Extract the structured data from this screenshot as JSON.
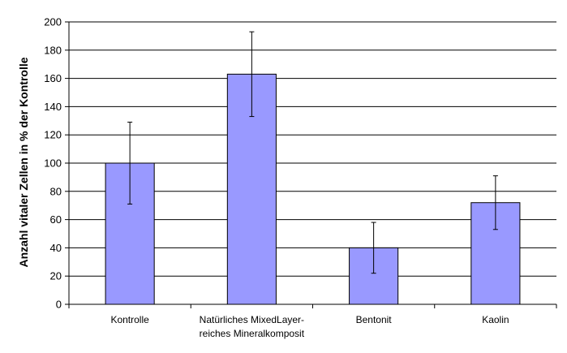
{
  "chart_data": {
    "type": "bar",
    "title": "",
    "xlabel": "",
    "ylabel": "Anzahl vitaler Zellen in % der Kontrolle",
    "ylim": [
      0,
      200
    ],
    "yticks": [
      0,
      20,
      40,
      60,
      80,
      100,
      120,
      140,
      160,
      180,
      200
    ],
    "ytick_labels": [
      "0",
      "20",
      "40",
      "60",
      "80",
      "100",
      "120",
      "140",
      "160",
      "180",
      "200"
    ],
    "grid": true,
    "legend": "none",
    "categories": [
      [
        "Kontrolle"
      ],
      [
        "Natürliches MixedLayer-",
        "reiches Mineralkomposit"
      ],
      [
        "Bentonit"
      ],
      [
        "Kaolin"
      ]
    ],
    "values": [
      100,
      163,
      40,
      72
    ],
    "error_low": [
      71,
      133,
      22,
      53
    ],
    "error_high": [
      129,
      193,
      58,
      91
    ],
    "bar_color": "#9999ff",
    "bar_edge_color": "#000000"
  }
}
